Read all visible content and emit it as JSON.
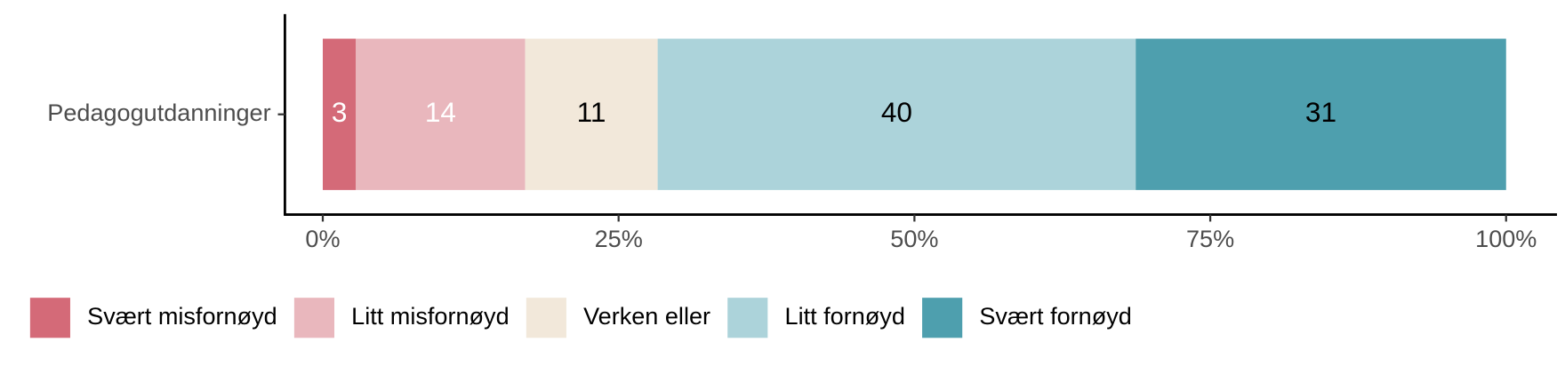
{
  "chart_data": {
    "type": "stacked_barh",
    "categories": [
      "Pedagogutdanninger"
    ],
    "series": [
      {
        "name": "Svært misfornøyd",
        "color": "#d46a78",
        "label_color": "#ffffff",
        "values": [
          2.8
        ],
        "value_labels": [
          "3"
        ]
      },
      {
        "name": "Litt misfornøyd",
        "color": "#e9b7bd",
        "label_color": "#ffffff",
        "values": [
          14.3
        ],
        "value_labels": [
          "14"
        ]
      },
      {
        "name": "Verken eller",
        "color": "#f2e8da",
        "label_color": "#000000",
        "values": [
          11.2
        ],
        "value_labels": [
          "11"
        ]
      },
      {
        "name": "Litt fornøyd",
        "color": "#acd3da",
        "label_color": "#000000",
        "values": [
          40.4
        ],
        "value_labels": [
          "40"
        ]
      },
      {
        "name": "Svært fornøyd",
        "color": "#4e9fae",
        "label_color": "#000000",
        "values": [
          31.3
        ],
        "value_labels": [
          "31"
        ]
      }
    ],
    "xlim": [
      -3.2,
      104.3
    ],
    "xticks": [
      {
        "value": 0,
        "label": "0%"
      },
      {
        "value": 25,
        "label": "25%"
      },
      {
        "value": 50,
        "label": "50%"
      },
      {
        "value": 75,
        "label": "75%"
      },
      {
        "value": 100,
        "label": "100%"
      }
    ],
    "legend": "bottom"
  }
}
